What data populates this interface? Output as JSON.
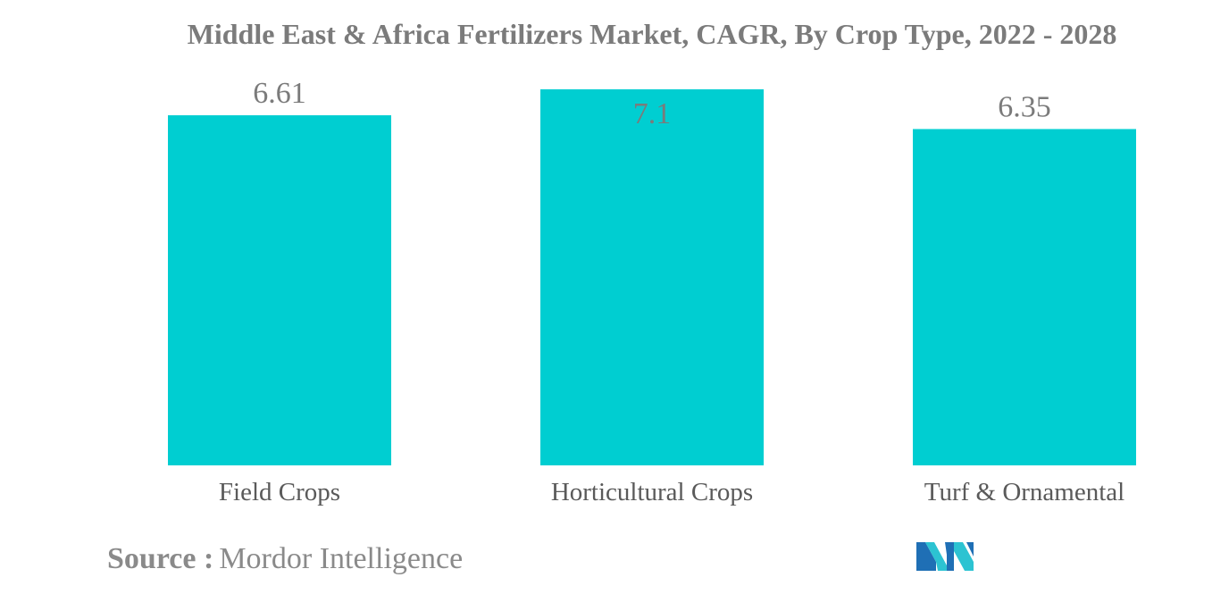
{
  "chart_data": {
    "type": "bar",
    "title": "Middle East & Africa Fertilizers Market, CAGR, By Crop Type, 2022 - 2028",
    "categories": [
      "Field Crops",
      "Horticultural Crops",
      "Turf & Ornamental"
    ],
    "values": [
      6.61,
      7.1,
      6.35
    ],
    "value_labels": [
      "6.61",
      "7.1",
      "6.35"
    ],
    "xlabel": "",
    "ylabel": "",
    "ylim": [
      0,
      7.1
    ],
    "grid": false,
    "legend": "none",
    "bar_color": "#00ced1",
    "label_color": "#7b7b7b"
  },
  "source": {
    "label": "Source :",
    "value": "Mordor Intelligence"
  },
  "logo": {
    "icon": "mordor-intelligence-logo-icon",
    "colors": [
      "#1f6fb5",
      "#2cc3d2"
    ]
  }
}
